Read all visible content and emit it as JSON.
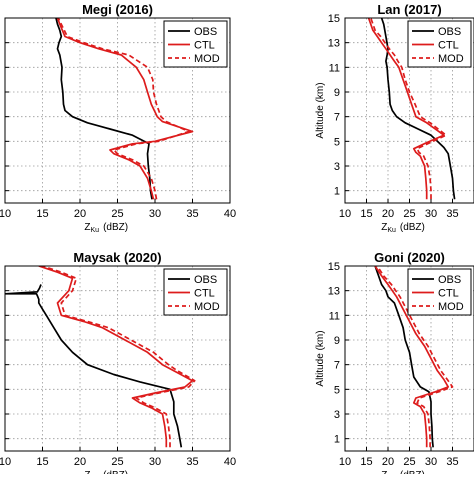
{
  "chart_data": [
    {
      "type": "line",
      "title": "Megi (2016)",
      "xlabel_main": "Z",
      "xlabel_sub": "Ku",
      "xlabel_unit": "(dBZ)",
      "ylabel": "",
      "xlim": [
        10,
        40
      ],
      "ylim": [
        0,
        15
      ],
      "xticks": [
        10,
        15,
        20,
        25,
        30,
        35,
        40
      ],
      "yticks": [],
      "minor_yticks": [
        1,
        3,
        5,
        7,
        9,
        11,
        13,
        15
      ],
      "grid": true,
      "legend": "top-right",
      "series": [
        {
          "name": "OBS",
          "color": "#000000",
          "dash": "solid",
          "x": [
            29.6,
            29.4,
            29.3,
            29.1,
            29.0,
            29.2,
            27.0,
            24.0,
            21.0,
            19.0,
            18.0,
            17.8,
            17.7,
            17.5,
            17.6,
            17.3,
            17.0,
            17.2,
            17.5,
            17.3,
            17.0,
            16.8
          ],
          "y": [
            0.3,
            1,
            2,
            3,
            4,
            4.8,
            5.5,
            6.0,
            6.5,
            7.0,
            7.5,
            8,
            9,
            10,
            11,
            12,
            12.5,
            13,
            13.5,
            14,
            14.5,
            15
          ]
        },
        {
          "name": "CTL",
          "color": "#dd1c1c",
          "dash": "solid",
          "x": [
            29.8,
            29.5,
            29.0,
            28.0,
            26.5,
            24.5,
            24.0,
            27.0,
            30.0,
            35.0,
            31.0,
            30.3,
            29.5,
            29.0,
            28.5,
            27.5,
            25.5,
            22.5,
            20.0,
            18.0,
            17.3,
            17.0
          ],
          "y": [
            0.3,
            1,
            2,
            3,
            3.5,
            4.0,
            4.3,
            4.8,
            5.0,
            5.8,
            6.6,
            7,
            8,
            9,
            10,
            11,
            12,
            12.5,
            13,
            13.5,
            14.5,
            15
          ]
        },
        {
          "name": "MOD",
          "color": "#dd1c1c",
          "dash": "dashed",
          "x": [
            30.2,
            30.0,
            29.5,
            28.5,
            27.0,
            25.0,
            24.5,
            27.5,
            30.5,
            34.5,
            31.5,
            30.8,
            30.2,
            29.8,
            29.7,
            29.0,
            26.5,
            23.0,
            20.5,
            18.3,
            17.5,
            17.1
          ],
          "y": [
            0.3,
            1,
            2,
            3,
            3.5,
            4.0,
            4.3,
            4.8,
            5.0,
            5.8,
            6.6,
            7,
            8,
            9,
            10,
            11,
            12,
            12.5,
            13,
            13.5,
            14.5,
            15
          ]
        }
      ]
    },
    {
      "type": "line",
      "title": "Lan (2017)",
      "xlabel_main": "Z",
      "xlabel_sub": "Ku",
      "xlabel_unit": "(dBZ)",
      "ylabel": "Altitude (km)",
      "xlim": [
        10,
        40
      ],
      "ylim": [
        0,
        15
      ],
      "xticks": [
        10,
        15,
        20,
        25,
        30,
        35
      ],
      "yticks": [
        1,
        3,
        5,
        7,
        9,
        11,
        13,
        15
      ],
      "grid": true,
      "legend": "top-right",
      "series": [
        {
          "name": "OBS",
          "color": "#000000",
          "dash": "solid",
          "x": [
            35.5,
            35.2,
            35.0,
            34.5,
            34.0,
            33.0,
            31.5,
            30.0,
            27.0,
            24.0,
            22.0,
            21.0,
            20.5,
            20.3,
            20.0,
            19.8,
            19.5,
            19.8,
            20.0,
            19.5,
            19.0,
            18.5
          ],
          "y": [
            0.3,
            1,
            2,
            3,
            4,
            4.5,
            5.0,
            5.5,
            6.0,
            6.5,
            7,
            7.5,
            8,
            9,
            10,
            11,
            11.5,
            12,
            12.5,
            13.5,
            14.5,
            15
          ]
        },
        {
          "name": "CTL",
          "color": "#dd1c1c",
          "dash": "solid",
          "x": [
            29.0,
            29.0,
            28.8,
            28.5,
            27.5,
            26.5,
            26.0,
            29.0,
            33.0,
            29.0,
            26.5,
            25.5,
            24.5,
            23.5,
            22.5,
            21.5,
            20.5,
            19.5,
            18.5,
            17.5,
            16.5,
            15.5
          ],
          "y": [
            0.3,
            1,
            2,
            3,
            3.8,
            4.1,
            4.4,
            4.9,
            5.5,
            6.5,
            7,
            8,
            9,
            10,
            11,
            11.5,
            12,
            12.5,
            13,
            13.5,
            14,
            15
          ]
        },
        {
          "name": "MOD",
          "color": "#dd1c1c",
          "dash": "dashed",
          "x": [
            30.0,
            30.0,
            29.8,
            29.3,
            28.3,
            27.2,
            26.8,
            29.8,
            33.5,
            29.8,
            27.5,
            26.3,
            25.0,
            24.0,
            23.2,
            22.3,
            21.5,
            20.3,
            19.3,
            18.3,
            17.0,
            16.0
          ],
          "y": [
            0.3,
            1,
            2,
            3,
            3.8,
            4.1,
            4.4,
            4.9,
            5.5,
            6.5,
            7,
            8,
            9,
            10,
            11,
            11.5,
            12,
            12.5,
            13,
            13.5,
            14,
            15
          ]
        }
      ]
    },
    {
      "type": "line",
      "title": "Maysak (2020)",
      "xlabel_main": "Z",
      "xlabel_sub": "Ku",
      "xlabel_unit": "(dBZ)",
      "ylabel": "",
      "xlim": [
        10,
        40
      ],
      "ylim": [
        0,
        15
      ],
      "xticks": [
        10,
        15,
        20,
        25,
        30,
        35,
        40
      ],
      "yticks": [],
      "minor_yticks": [
        1,
        3,
        5,
        7,
        9,
        11,
        13,
        15
      ],
      "grid": true,
      "legend": "top-right",
      "series": [
        {
          "name": "OBS",
          "color": "#000000",
          "dash": "solid",
          "x": [
            33.5,
            33.3,
            33.0,
            32.5,
            32.5,
            32.0,
            28.0,
            24.5,
            21.0,
            19.0,
            17.5,
            16.5,
            15.5,
            15.0,
            14.5,
            14.5,
            14.3,
            14.2,
            10.0,
            14.3,
            14.6,
            14.8
          ],
          "y": [
            0.3,
            1,
            2,
            3,
            4,
            5.0,
            5.6,
            6.2,
            7,
            8,
            9,
            10,
            11,
            11.5,
            12,
            12.3,
            12.6,
            12.75,
            12.75,
            12.9,
            13.2,
            13.5
          ]
        },
        {
          "name": "CTL",
          "color": "#dd1c1c",
          "dash": "solid",
          "x": [
            31.5,
            31.5,
            31.3,
            31.0,
            29.5,
            28.0,
            27.0,
            30.0,
            34.0,
            35.0,
            32.5,
            31.0,
            29.0,
            26.0,
            23.0,
            20.5,
            17.5,
            17.0,
            18.5,
            19.0,
            17.0,
            14.5
          ],
          "y": [
            0.3,
            1,
            2,
            3,
            3.5,
            3.9,
            4.3,
            4.7,
            5.2,
            5.7,
            6.5,
            7,
            8,
            9,
            10,
            10.5,
            11,
            12,
            13,
            14,
            14.5,
            15
          ]
        },
        {
          "name": "MOD",
          "color": "#dd1c1c",
          "dash": "dashed",
          "x": [
            32.0,
            32.0,
            31.8,
            31.5,
            30.0,
            28.5,
            27.5,
            30.5,
            34.5,
            35.3,
            33.0,
            31.8,
            29.8,
            26.8,
            23.8,
            21.0,
            18.0,
            17.5,
            19.0,
            19.5,
            17.5,
            15.0
          ],
          "y": [
            0.3,
            1,
            2,
            3,
            3.5,
            3.9,
            4.3,
            4.7,
            5.2,
            5.7,
            6.5,
            7,
            8,
            9,
            10,
            10.5,
            11,
            12,
            13,
            14,
            14.5,
            15
          ]
        }
      ]
    },
    {
      "type": "line",
      "title": "Goni (2020)",
      "xlabel_main": "Z",
      "xlabel_sub": "Ku",
      "xlabel_unit": "(dBZ)",
      "ylabel": "Altitude (km)",
      "xlim": [
        10,
        40
      ],
      "ylim": [
        0,
        15
      ],
      "xticks": [
        10,
        15,
        20,
        25,
        30,
        35
      ],
      "yticks": [
        1,
        3,
        5,
        7,
        9,
        11,
        13,
        15
      ],
      "grid": true,
      "legend": "top-right",
      "series": [
        {
          "name": "OBS",
          "color": "#000000",
          "dash": "solid",
          "x": [
            30.5,
            30.3,
            30.2,
            30.0,
            30.0,
            29.5,
            27.5,
            26.0,
            25.5,
            25.0,
            24.0,
            23.5,
            22.5,
            21.5,
            20.0,
            19.5,
            18.5,
            17.5,
            17.0
          ],
          "y": [
            0.3,
            1,
            2,
            3,
            4,
            4.8,
            5.2,
            6,
            7,
            8,
            9,
            10,
            11,
            12,
            12.5,
            13,
            13.5,
            14.5,
            15
          ]
        },
        {
          "name": "CTL",
          "color": "#dd1c1c",
          "dash": "solid",
          "x": [
            29.0,
            29.0,
            28.8,
            28.5,
            27.5,
            26.0,
            26.5,
            31.0,
            34.0,
            33.0,
            31.5,
            30.0,
            28.5,
            26.5,
            25.0,
            23.5,
            22.0,
            20.0,
            18.5,
            17.0
          ],
          "y": [
            0.3,
            1,
            2,
            3,
            3.6,
            3.9,
            4.3,
            4.8,
            5.2,
            5.8,
            6.5,
            7.5,
            8.5,
            9.5,
            10.5,
            11.5,
            12.5,
            13.5,
            14.2,
            15
          ]
        },
        {
          "name": "MOD",
          "color": "#dd1c1c",
          "dash": "dashed",
          "x": [
            29.8,
            29.8,
            29.6,
            29.3,
            28.3,
            26.8,
            27.3,
            31.8,
            35.0,
            33.8,
            32.3,
            30.8,
            29.3,
            27.3,
            25.8,
            24.3,
            22.8,
            20.8,
            19.0,
            17.5
          ],
          "y": [
            0.3,
            1,
            2,
            3,
            3.6,
            3.9,
            4.3,
            4.8,
            5.2,
            5.8,
            6.5,
            7.5,
            8.5,
            9.5,
            10.5,
            11.5,
            12.5,
            13.5,
            14.2,
            15
          ]
        }
      ]
    }
  ]
}
